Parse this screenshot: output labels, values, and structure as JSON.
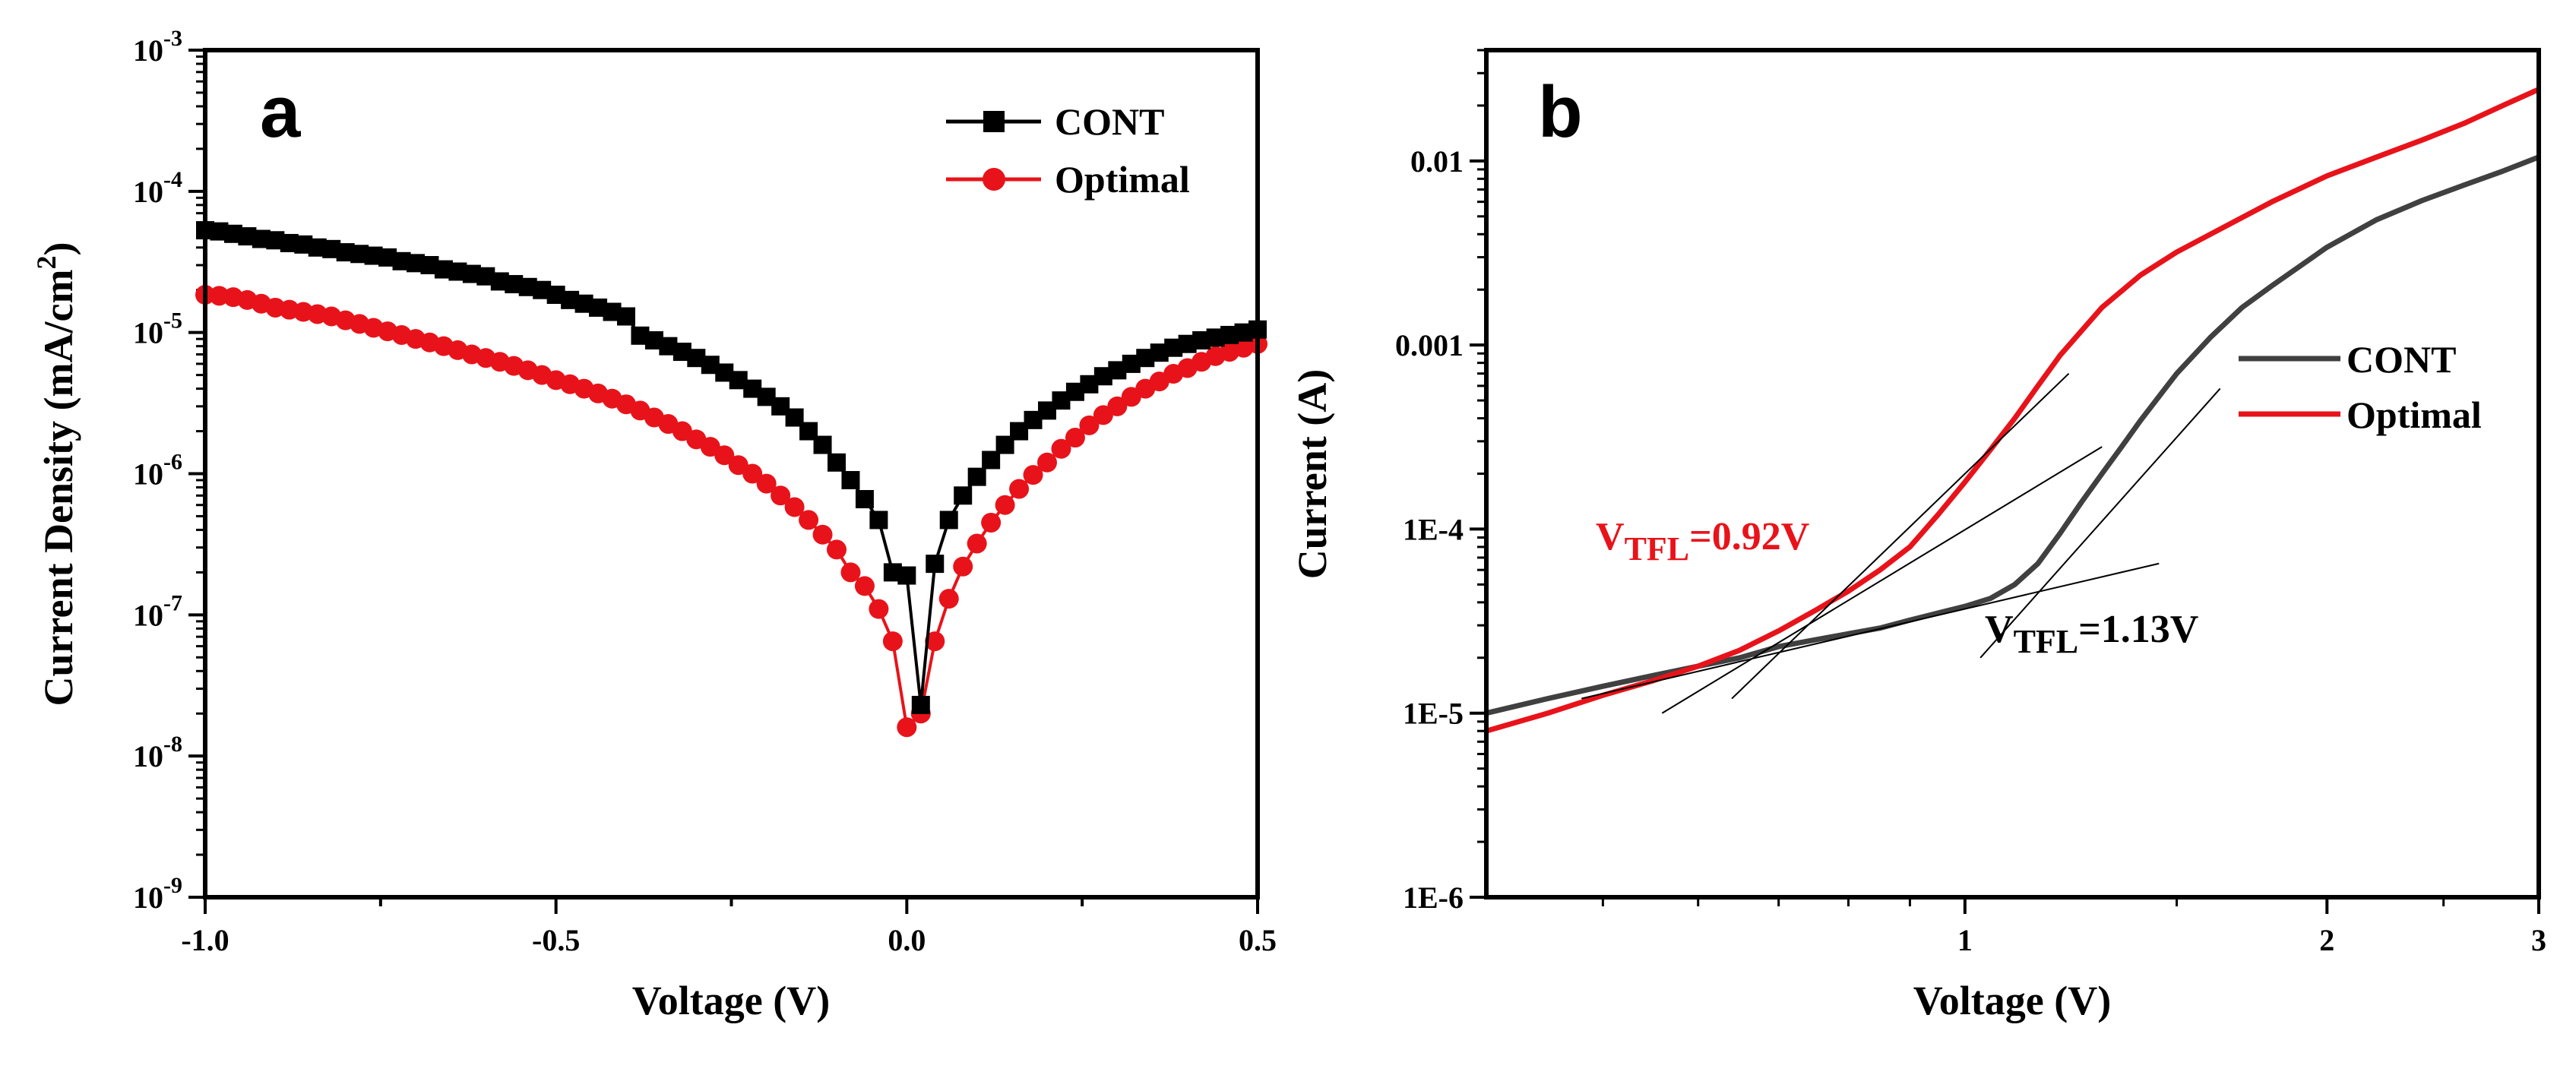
{
  "chart_data": [
    {
      "type": "line",
      "panel_label": "a",
      "xlabel": "Voltage (V)",
      "ylabel": "Current Density (mA/cm²)",
      "ylabel_base": "Current Density (mA/cm",
      "ylabel_sup": "2",
      "ylabel_end": ")",
      "yscale": "log",
      "xlim": [
        -1.0,
        0.5
      ],
      "ylim": [
        1e-09,
        0.001
      ],
      "xticks": [
        {
          "v": -1.0,
          "label": "-1.0"
        },
        {
          "v": -0.5,
          "label": "-0.5"
        },
        {
          "v": 0.0,
          "label": "0.0"
        },
        {
          "v": 0.5,
          "label": "0.5"
        }
      ],
      "yticks": [
        {
          "v": 1e-09,
          "base": "10",
          "exp": "-9"
        },
        {
          "v": 1e-08,
          "base": "10",
          "exp": "-8"
        },
        {
          "v": 1e-07,
          "base": "10",
          "exp": "-7"
        },
        {
          "v": 1e-06,
          "base": "10",
          "exp": "-6"
        },
        {
          "v": 1e-05,
          "base": "10",
          "exp": "-5"
        },
        {
          "v": 0.0001,
          "base": "10",
          "exp": "-4"
        },
        {
          "v": 0.001,
          "base": "10",
          "exp": "-3"
        }
      ],
      "legend_position": "top-right",
      "series": [
        {
          "name": "CONT",
          "color": "#000000",
          "marker": "square",
          "points": [
            [
              -1.0,
              5.3e-05
            ],
            [
              -0.98,
              5.2e-05
            ],
            [
              -0.96,
              5e-05
            ],
            [
              -0.94,
              4.8e-05
            ],
            [
              -0.92,
              4.6e-05
            ],
            [
              -0.9,
              4.5e-05
            ],
            [
              -0.88,
              4.3e-05
            ],
            [
              -0.86,
              4.2e-05
            ],
            [
              -0.84,
              4e-05
            ],
            [
              -0.82,
              3.9e-05
            ],
            [
              -0.8,
              3.7e-05
            ],
            [
              -0.78,
              3.6e-05
            ],
            [
              -0.76,
              3.5e-05
            ],
            [
              -0.74,
              3.4e-05
            ],
            [
              -0.72,
              3.2e-05
            ],
            [
              -0.7,
              3.1e-05
            ],
            [
              -0.68,
              3e-05
            ],
            [
              -0.66,
              2.8e-05
            ],
            [
              -0.64,
              2.7e-05
            ],
            [
              -0.62,
              2.6e-05
            ],
            [
              -0.6,
              2.5e-05
            ],
            [
              -0.58,
              2.3e-05
            ],
            [
              -0.56,
              2.2e-05
            ],
            [
              -0.54,
              2.1e-05
            ],
            [
              -0.52,
              2e-05
            ],
            [
              -0.5,
              1.85e-05
            ],
            [
              -0.48,
              1.7e-05
            ],
            [
              -0.46,
              1.6e-05
            ],
            [
              -0.44,
              1.5e-05
            ],
            [
              -0.42,
              1.4e-05
            ],
            [
              -0.4,
              1.3e-05
            ],
            [
              -0.38,
              9.5e-06
            ],
            [
              -0.36,
              8.8e-06
            ],
            [
              -0.34,
              8e-06
            ],
            [
              -0.32,
              7.3e-06
            ],
            [
              -0.3,
              6.6e-06
            ],
            [
              -0.28,
              5.9e-06
            ],
            [
              -0.26,
              5.2e-06
            ],
            [
              -0.24,
              4.6e-06
            ],
            [
              -0.22,
              4e-06
            ],
            [
              -0.2,
              3.5e-06
            ],
            [
              -0.18,
              3e-06
            ],
            [
              -0.16,
              2.5e-06
            ],
            [
              -0.14,
              2e-06
            ],
            [
              -0.12,
              1.6e-06
            ],
            [
              -0.1,
              1.2e-06
            ],
            [
              -0.08,
              9e-07
            ],
            [
              -0.06,
              6.6e-07
            ],
            [
              -0.04,
              4.7e-07
            ],
            [
              -0.02,
              2e-07
            ],
            [
              0.0,
              1.9e-07
            ],
            [
              0.02,
              2.3e-08
            ],
            [
              0.04,
              2.3e-07
            ],
            [
              0.06,
              4.7e-07
            ],
            [
              0.08,
              7e-07
            ],
            [
              0.1,
              9.5e-07
            ],
            [
              0.12,
              1.25e-06
            ],
            [
              0.14,
              1.6e-06
            ],
            [
              0.16,
              2e-06
            ],
            [
              0.18,
              2.4e-06
            ],
            [
              0.2,
              2.8e-06
            ],
            [
              0.22,
              3.3e-06
            ],
            [
              0.24,
              3.8e-06
            ],
            [
              0.26,
              4.3e-06
            ],
            [
              0.28,
              4.9e-06
            ],
            [
              0.3,
              5.4e-06
            ],
            [
              0.32,
              6e-06
            ],
            [
              0.34,
              6.6e-06
            ],
            [
              0.36,
              7.2e-06
            ],
            [
              0.38,
              7.8e-06
            ],
            [
              0.4,
              8.3e-06
            ],
            [
              0.42,
              8.8e-06
            ],
            [
              0.44,
              9.2e-06
            ],
            [
              0.46,
              9.6e-06
            ],
            [
              0.48,
              1e-05
            ],
            [
              0.5,
              1.05e-05
            ]
          ]
        },
        {
          "name": "Optimal",
          "color": "#e8131a",
          "marker": "circle",
          "points": [
            [
              -1.0,
              1.85e-05
            ],
            [
              -0.98,
              1.82e-05
            ],
            [
              -0.96,
              1.78e-05
            ],
            [
              -0.94,
              1.7e-05
            ],
            [
              -0.92,
              1.6e-05
            ],
            [
              -0.9,
              1.5e-05
            ],
            [
              -0.88,
              1.45e-05
            ],
            [
              -0.86,
              1.4e-05
            ],
            [
              -0.84,
              1.35e-05
            ],
            [
              -0.82,
              1.3e-05
            ],
            [
              -0.8,
              1.22e-05
            ],
            [
              -0.78,
              1.15e-05
            ],
            [
              -0.76,
              1.08e-05
            ],
            [
              -0.74,
              1.02e-05
            ],
            [
              -0.72,
              9.6e-06
            ],
            [
              -0.7,
              9e-06
            ],
            [
              -0.68,
              8.5e-06
            ],
            [
              -0.66,
              8e-06
            ],
            [
              -0.64,
              7.5e-06
            ],
            [
              -0.62,
              7e-06
            ],
            [
              -0.6,
              6.6e-06
            ],
            [
              -0.58,
              6.2e-06
            ],
            [
              -0.56,
              5.8e-06
            ],
            [
              -0.54,
              5.4e-06
            ],
            [
              -0.52,
              5e-06
            ],
            [
              -0.5,
              4.6e-06
            ],
            [
              -0.48,
              4.3e-06
            ],
            [
              -0.46,
              4e-06
            ],
            [
              -0.44,
              3.7e-06
            ],
            [
              -0.42,
              3.4e-06
            ],
            [
              -0.4,
              3.1e-06
            ],
            [
              -0.38,
              2.8e-06
            ],
            [
              -0.36,
              2.5e-06
            ],
            [
              -0.34,
              2.25e-06
            ],
            [
              -0.32,
              2e-06
            ],
            [
              -0.3,
              1.75e-06
            ],
            [
              -0.28,
              1.55e-06
            ],
            [
              -0.26,
              1.35e-06
            ],
            [
              -0.24,
              1.15e-06
            ],
            [
              -0.22,
              1e-06
            ],
            [
              -0.2,
              8.5e-07
            ],
            [
              -0.18,
              7e-07
            ],
            [
              -0.16,
              5.8e-07
            ],
            [
              -0.14,
              4.7e-07
            ],
            [
              -0.12,
              3.7e-07
            ],
            [
              -0.1,
              2.9e-07
            ],
            [
              -0.08,
              2e-07
            ],
            [
              -0.06,
              1.6e-07
            ],
            [
              -0.04,
              1.1e-07
            ],
            [
              -0.02,
              6.5e-08
            ],
            [
              0.0,
              1.6e-08
            ],
            [
              0.02,
              2e-08
            ],
            [
              0.04,
              6.5e-08
            ],
            [
              0.06,
              1.3e-07
            ],
            [
              0.08,
              2.2e-07
            ],
            [
              0.1,
              3.2e-07
            ],
            [
              0.12,
              4.5e-07
            ],
            [
              0.14,
              6e-07
            ],
            [
              0.16,
              7.8e-07
            ],
            [
              0.18,
              9.8e-07
            ],
            [
              0.2,
              1.2e-06
            ],
            [
              0.22,
              1.5e-06
            ],
            [
              0.24,
              1.8e-06
            ],
            [
              0.26,
              2.2e-06
            ],
            [
              0.28,
              2.6e-06
            ],
            [
              0.3,
              3e-06
            ],
            [
              0.32,
              3.5e-06
            ],
            [
              0.34,
              4e-06
            ],
            [
              0.36,
              4.5e-06
            ],
            [
              0.38,
              5.1e-06
            ],
            [
              0.4,
              5.6e-06
            ],
            [
              0.42,
              6.2e-06
            ],
            [
              0.44,
              6.8e-06
            ],
            [
              0.46,
              7.3e-06
            ],
            [
              0.48,
              7.8e-06
            ],
            [
              0.5,
              8.3e-06
            ]
          ]
        }
      ]
    },
    {
      "type": "line",
      "panel_label": "b",
      "xlabel": "Voltage (V)",
      "ylabel": "Current (A)",
      "xscale": "log",
      "yscale": "log",
      "xlim": [
        0.4,
        3.0
      ],
      "ylim": [
        1e-06,
        0.04
      ],
      "xticks": [
        {
          "v": 1,
          "label": "1"
        },
        {
          "v": 2,
          "label": "2"
        },
        {
          "v": 3,
          "label": "3"
        }
      ],
      "yticks": [
        {
          "v": 1e-06,
          "label": "1E-6"
        },
        {
          "v": 1e-05,
          "label": "1E-5"
        },
        {
          "v": 0.0001,
          "label": "1E-4"
        },
        {
          "v": 0.001,
          "label": "0.001"
        },
        {
          "v": 0.01,
          "label": "0.01"
        }
      ],
      "legend_position": "center-right",
      "series": [
        {
          "name": "CONT",
          "color": "#404040",
          "points": [
            [
              0.4,
              1e-05
            ],
            [
              0.45,
              1.2e-05
            ],
            [
              0.5,
              1.4e-05
            ],
            [
              0.55,
              1.6e-05
            ],
            [
              0.6,
              1.8e-05
            ],
            [
              0.65,
              2e-05
            ],
            [
              0.7,
              2.3e-05
            ],
            [
              0.75,
              2.5e-05
            ],
            [
              0.8,
              2.7e-05
            ],
            [
              0.85,
              2.9e-05
            ],
            [
              0.9,
              3.2e-05
            ],
            [
              0.95,
              3.5e-05
            ],
            [
              1.0,
              3.8e-05
            ],
            [
              1.05,
              4.2e-05
            ],
            [
              1.1,
              5e-05
            ],
            [
              1.15,
              6.5e-05
            ],
            [
              1.2,
              9.5e-05
            ],
            [
              1.25,
              0.00014
            ],
            [
              1.3,
              0.0002
            ],
            [
              1.35,
              0.00028
            ],
            [
              1.4,
              0.00039
            ],
            [
              1.5,
              0.0007
            ],
            [
              1.6,
              0.0011
            ],
            [
              1.7,
              0.0016
            ],
            [
              1.8,
              0.0021
            ],
            [
              2.0,
              0.0034
            ],
            [
              2.2,
              0.0048
            ],
            [
              2.4,
              0.0061
            ],
            [
              2.6,
              0.0074
            ],
            [
              2.8,
              0.0088
            ],
            [
              3.0,
              0.0105
            ]
          ]
        },
        {
          "name": "Optimal",
          "color": "#e8131a",
          "points": [
            [
              0.4,
              8e-06
            ],
            [
              0.45,
              1e-05
            ],
            [
              0.5,
              1.25e-05
            ],
            [
              0.55,
              1.5e-05
            ],
            [
              0.6,
              1.8e-05
            ],
            [
              0.65,
              2.2e-05
            ],
            [
              0.7,
              2.8e-05
            ],
            [
              0.75,
              3.6e-05
            ],
            [
              0.8,
              4.6e-05
            ],
            [
              0.85,
              6e-05
            ],
            [
              0.9,
              8e-05
            ],
            [
              0.95,
              0.00012
            ],
            [
              1.0,
              0.00018
            ],
            [
              1.05,
              0.00027
            ],
            [
              1.1,
              0.0004
            ],
            [
              1.15,
              0.0006
            ],
            [
              1.2,
              0.00088
            ],
            [
              1.3,
              0.0016
            ],
            [
              1.4,
              0.0024
            ],
            [
              1.5,
              0.0032
            ],
            [
              1.6,
              0.004
            ],
            [
              1.8,
              0.006
            ],
            [
              2.0,
              0.0083
            ],
            [
              2.2,
              0.0105
            ],
            [
              2.4,
              0.013
            ],
            [
              2.6,
              0.016
            ],
            [
              2.8,
              0.02
            ],
            [
              3.0,
              0.0245
            ]
          ]
        }
      ],
      "fit_lines": [
        {
          "color": "#000000",
          "points": [
            [
              0.56,
              1e-05
            ],
            [
              1.3,
              0.00028
            ]
          ]
        },
        {
          "color": "#000000",
          "points": [
            [
              0.64,
              1.2e-05
            ],
            [
              1.22,
              0.0007
            ]
          ]
        },
        {
          "color": "#000000",
          "points": [
            [
              0.48,
              1.2e-05
            ],
            [
              1.45,
              6.5e-05
            ]
          ]
        },
        {
          "color": "#000000",
          "points": [
            [
              1.03,
              2e-05
            ],
            [
              1.63,
              0.00058
            ]
          ]
        }
      ],
      "annotations": [
        {
          "id": "optimal",
          "base": "V",
          "sub": "TFL",
          "rest": "=0.92V",
          "color": "#e8131a"
        },
        {
          "id": "cont",
          "base": "V",
          "sub": "TFL",
          "rest": "=1.13V",
          "color": "#000000"
        }
      ]
    }
  ]
}
